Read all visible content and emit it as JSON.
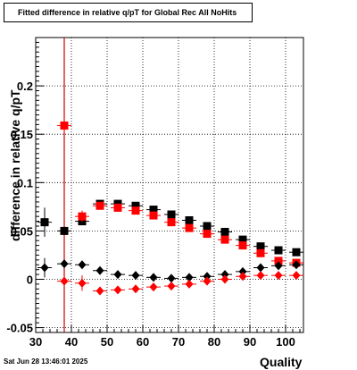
{
  "header": {
    "title": "Fitted difference in relative q/pT for Global Rec All NoHits",
    "datestamp": "Sat Jun 28 13:46:01 2025"
  },
  "chart_data": {
    "type": "scatter",
    "title": "Fitted difference in relative q/pT for Global Rec All NoHits",
    "xlabel": "Quality",
    "ylabel": "difference in relative q/pT",
    "xlim": [
      30,
      105
    ],
    "ylim": [
      -0.055,
      0.25
    ],
    "xticks": [
      30,
      40,
      50,
      60,
      70,
      80,
      90,
      100
    ],
    "yticks": [
      -0.05,
      0,
      0.05,
      0.1,
      0.15,
      0.2
    ],
    "ytick_labels": [
      "-0.05",
      "0",
      "0.05",
      "0.1",
      "0.15",
      "0.2"
    ],
    "grid": true,
    "vline": {
      "x": 38,
      "color": "#cc0000"
    },
    "series": [
      {
        "marker": "square",
        "color": "#000000",
        "x": [
          32.5,
          38,
          43,
          48,
          53,
          58,
          63,
          68,
          73,
          78,
          83,
          88,
          93,
          98,
          103
        ],
        "y": [
          0.059,
          0.05,
          0.06,
          0.078,
          0.078,
          0.076,
          0.072,
          0.067,
          0.061,
          0.055,
          0.049,
          0.041,
          0.034,
          0.03,
          0.028
        ],
        "err": [
          0.015,
          0.004,
          0.004,
          0.002,
          0.002,
          0.002,
          0.002,
          0.002,
          0.002,
          0.002,
          0.002,
          0.002,
          0.002,
          0.002,
          0.002
        ]
      },
      {
        "marker": "square",
        "color": "#ff0000",
        "x": [
          38,
          43,
          48,
          53,
          58,
          63,
          68,
          73,
          78,
          83,
          88,
          93,
          98,
          103
        ],
        "y": [
          0.159,
          0.065,
          0.076,
          0.074,
          0.071,
          0.066,
          0.059,
          0.053,
          0.047,
          0.041,
          0.035,
          0.027,
          0.019,
          0.017
        ],
        "err": [
          0.008,
          0.006,
          0.003,
          0.003,
          0.003,
          0.003,
          0.003,
          0.003,
          0.003,
          0.003,
          0.003,
          0.003,
          0.003,
          0.003
        ]
      },
      {
        "marker": "diamond",
        "color": "#000000",
        "x": [
          32.5,
          38,
          43,
          48,
          53,
          58,
          63,
          68,
          73,
          78,
          83,
          88,
          93,
          98,
          103
        ],
        "y": [
          0.012,
          0.016,
          0.015,
          0.009,
          0.005,
          0.004,
          0.002,
          0.001,
          0.002,
          0.003,
          0.005,
          0.008,
          0.012,
          0.014,
          0.015
        ],
        "err": [
          0.01,
          0.003,
          0.002,
          0.001,
          0.001,
          0.001,
          0.001,
          0.001,
          0.001,
          0.001,
          0.001,
          0.001,
          0.001,
          0.001,
          0.001
        ]
      },
      {
        "marker": "diamond",
        "color": "#ff0000",
        "x": [
          38,
          43,
          48,
          53,
          58,
          63,
          68,
          73,
          78,
          83,
          88,
          93,
          98,
          103
        ],
        "y": [
          -0.002,
          -0.004,
          -0.012,
          -0.011,
          -0.01,
          -0.008,
          -0.007,
          -0.005,
          -0.002,
          0.0,
          0.003,
          0.004,
          0.004,
          0.004
        ],
        "err": [
          0.004,
          0.008,
          0.002,
          0.002,
          0.002,
          0.002,
          0.002,
          0.002,
          0.002,
          0.002,
          0.002,
          0.002,
          0.002,
          0.002
        ]
      }
    ]
  }
}
